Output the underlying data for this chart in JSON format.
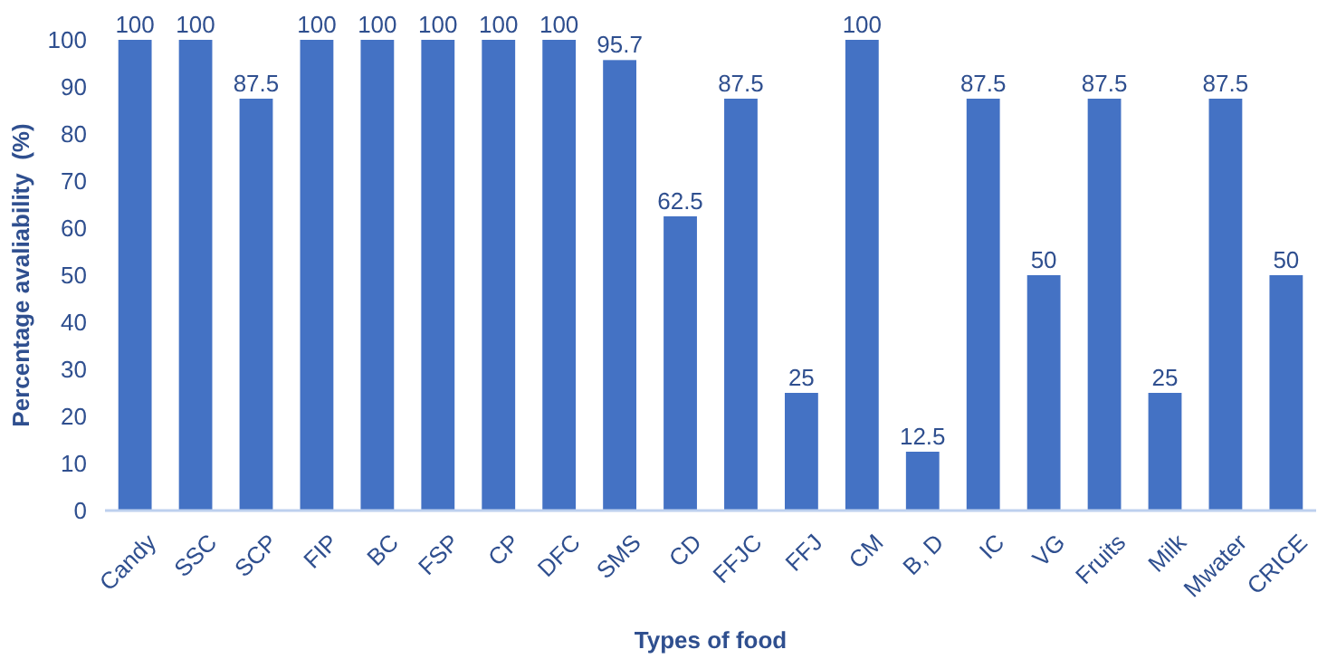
{
  "chart_data": {
    "type": "bar",
    "xlabel": "Types of food",
    "ylabel": "Percentage avaliability  (%)",
    "categories": [
      "Candy",
      "SSC",
      "SCP",
      "FIP",
      "BC",
      "FSP",
      "CP",
      "DFC",
      "SMS",
      "CD",
      "FFJC",
      "FFJ",
      "CM",
      "B, D",
      "IC",
      "VG",
      "Fruits",
      "Milk",
      "Mwater",
      "CRICE"
    ],
    "values": [
      100,
      100,
      87.5,
      100,
      100,
      100,
      100,
      100,
      95.7,
      62.5,
      87.5,
      25,
      100,
      12.5,
      87.5,
      50,
      87.5,
      25,
      87.5,
      50
    ],
    "color": "#4472c4",
    "data_labels": true,
    "ylim": [
      0,
      100
    ],
    "yticks": [
      0,
      10,
      20,
      30,
      40,
      50,
      60,
      70,
      80,
      90,
      100
    ],
    "grid": false
  }
}
